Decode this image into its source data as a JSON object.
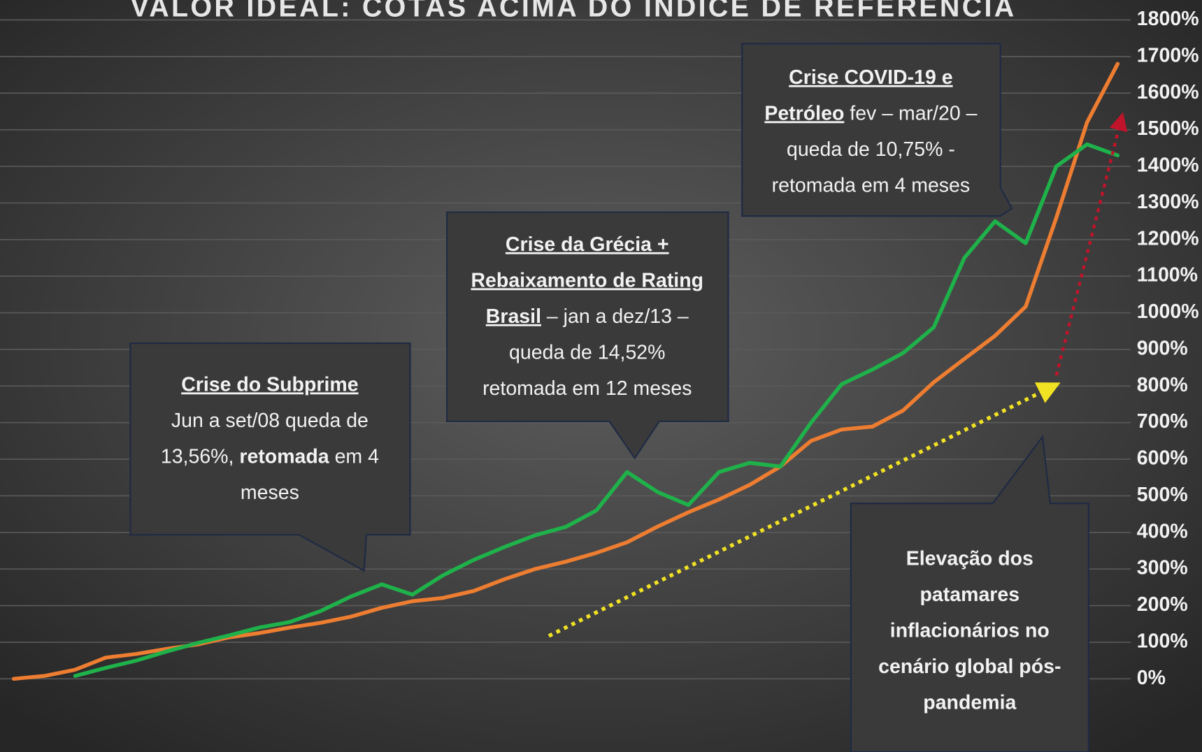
{
  "chart_data": {
    "type": "line",
    "title": "VALOR IDEAL: COTAS ACIMA DO ÍNDICE DE REFERÊNCIA",
    "ylim": [
      0,
      1800
    ],
    "yticks": [
      {
        "value": 0,
        "label": "0%"
      },
      {
        "value": 100,
        "label": "100%"
      },
      {
        "value": 200,
        "label": "200%"
      },
      {
        "value": 300,
        "label": "300%"
      },
      {
        "value": 400,
        "label": "400%"
      },
      {
        "value": 500,
        "label": "500%"
      },
      {
        "value": 600,
        "label": "600%"
      },
      {
        "value": 700,
        "label": "700%"
      },
      {
        "value": 800,
        "label": "800%"
      },
      {
        "value": 900,
        "label": "900%"
      },
      {
        "value": 1000,
        "label": "1000%"
      },
      {
        "value": 1100,
        "label": "1100%"
      },
      {
        "value": 1200,
        "label": "1200%"
      },
      {
        "value": 1300,
        "label": "1300%"
      },
      {
        "value": 1400,
        "label": "1400%"
      },
      {
        "value": 1500,
        "label": "1500%"
      },
      {
        "value": 1600,
        "label": "1600%"
      },
      {
        "value": 1700,
        "label": "1700%"
      },
      {
        "value": 1800,
        "label": "1800%"
      }
    ],
    "grid": true,
    "series": [
      {
        "color": "#ed7d31",
        "values": [
          0,
          8,
          25,
          58,
          68,
          82,
          94,
          113,
          125,
          140,
          153,
          170,
          194,
          212,
          221,
          240,
          272,
          300,
          320,
          344,
          373,
          416,
          455,
          490,
          530,
          580,
          650,
          681,
          689,
          733,
          810,
          874,
          937,
          1017,
          1260,
          1520,
          1680
        ]
      },
      {
        "color": "#1fb24a",
        "values": [
          null,
          null,
          8,
          30,
          50,
          75,
          98,
          118,
          140,
          155,
          185,
          225,
          258,
          230,
          283,
          325,
          360,
          392,
          415,
          460,
          565,
          510,
          475,
          565,
          590,
          580,
          700,
          805,
          845,
          890,
          960,
          1150,
          1250,
          1190,
          1400,
          1460,
          1430
        ]
      }
    ],
    "annotations": [
      {
        "lines": [
          [
            {
              "text": "Crise do Subprime",
              "bold": true,
              "underline": true
            }
          ],
          [
            {
              "text": "Jun a set/08 queda de",
              "bold": false,
              "underline": false
            }
          ],
          [
            {
              "text": "13,56%, ",
              "bold": false,
              "underline": false
            },
            {
              "text": "retomada",
              "bold": true,
              "underline": false
            },
            {
              "text": " em 4",
              "bold": false,
              "underline": false
            }
          ],
          [
            {
              "text": "meses",
              "bold": false,
              "underline": false
            }
          ]
        ]
      },
      {
        "lines": [
          [
            {
              "text": "Crise da Grécia +",
              "bold": true,
              "underline": true
            }
          ],
          [
            {
              "text": "Rebaixamento de Rating",
              "bold": true,
              "underline": true
            }
          ],
          [
            {
              "text": "Brasil",
              "bold": true,
              "underline": true
            },
            {
              "text": " – jan a dez/13 –",
              "bold": false,
              "underline": false
            }
          ],
          [
            {
              "text": "queda de 14,52%",
              "bold": false,
              "underline": false
            }
          ],
          [
            {
              "text": "retomada em 12 meses",
              "bold": false,
              "underline": false
            }
          ]
        ]
      },
      {
        "lines": [
          [
            {
              "text": "Crise COVID-19 e",
              "bold": true,
              "underline": true
            }
          ],
          [
            {
              "text": "Petróleo",
              "bold": true,
              "underline": true
            },
            {
              "text": " fev – mar/20 –",
              "bold": false,
              "underline": false
            }
          ],
          [
            {
              "text": "queda de 10,75% -",
              "bold": false,
              "underline": false
            }
          ],
          [
            {
              "text": "retomada em 4 meses",
              "bold": false,
              "underline": false
            }
          ]
        ]
      },
      {
        "lines": [
          [
            {
              "text": "Elevação dos",
              "bold": true,
              "underline": false
            }
          ],
          [
            {
              "text": "patamares",
              "bold": true,
              "underline": false
            }
          ],
          [
            {
              "text": "inflacionários no",
              "bold": true,
              "underline": false
            }
          ],
          [
            {
              "text": "cenário global pós-",
              "bold": true,
              "underline": false
            }
          ],
          [
            {
              "text": "pandemia",
              "bold": true,
              "underline": false
            }
          ]
        ]
      }
    ]
  }
}
